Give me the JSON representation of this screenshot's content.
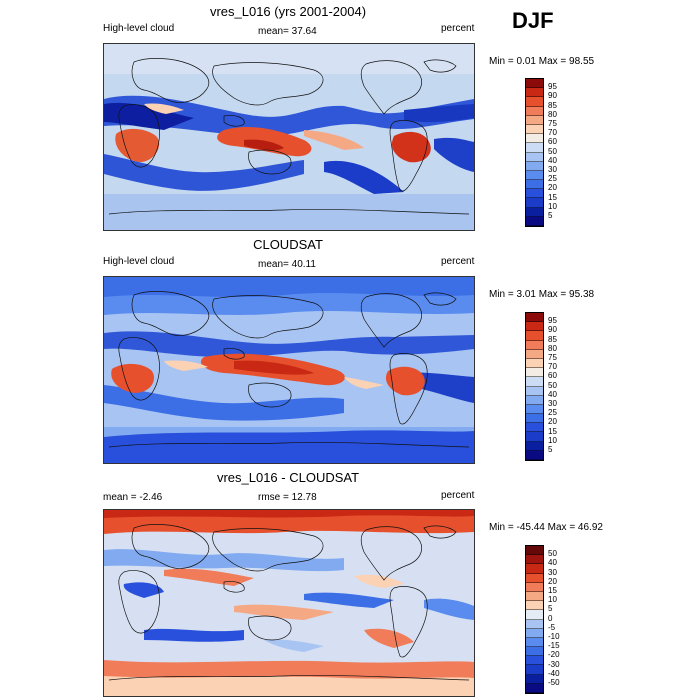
{
  "season": "DJF",
  "panels": [
    {
      "title": "vres_L016 (yrs 2001-2004)",
      "left_label": "High-level cloud",
      "center_label": "mean=  37.64",
      "right_label": "percent",
      "minmax": "Min =   0.01 Max =  98.55",
      "colorbar_ticks": [
        "95",
        "90",
        "85",
        "80",
        "75",
        "70",
        "60",
        "50",
        "40",
        "30",
        "25",
        "20",
        "15",
        "10",
        "5"
      ]
    },
    {
      "title": "CLOUDSAT",
      "left_label": "High-level cloud",
      "center_label": "mean=  40.11",
      "right_label": "percent",
      "minmax": "Min =   3.01 Max =  95.38",
      "colorbar_ticks": [
        "95",
        "90",
        "85",
        "80",
        "75",
        "70",
        "60",
        "50",
        "40",
        "30",
        "25",
        "20",
        "15",
        "10",
        "5"
      ]
    },
    {
      "title": "vres_L016 - CLOUDSAT",
      "left_label": "mean =  -2.46",
      "center_label": "rmse =  12.78",
      "right_label": "percent",
      "minmax": "Min = -45.44 Max =  46.92",
      "colorbar_ticks": [
        "50",
        "40",
        "30",
        "20",
        "15",
        "10",
        "5",
        "0",
        "-5",
        "-10",
        "-15",
        "-20",
        "-30",
        "-40",
        "-50"
      ]
    }
  ],
  "colors": {
    "abs_scale": [
      "#0a0a82",
      "#0a1ea0",
      "#1a3cc8",
      "#2850dc",
      "#3c6ee6",
      "#5a8cf0",
      "#82aaf0",
      "#a8c4f2",
      "#cddcf5",
      "#f2ece4",
      "#fcd2b4",
      "#f5a884",
      "#f07c5a",
      "#e6502d",
      "#c82814",
      "#8c0a0a"
    ],
    "diff_scale": [
      "#0a0a82",
      "#0a1ea0",
      "#1a3cc8",
      "#2850dc",
      "#3c6ee6",
      "#5a8cf0",
      "#82aaf0",
      "#a8c4f2",
      "#e6ecf5",
      "#fcd2b4",
      "#f5a884",
      "#f07c5a",
      "#e6502d",
      "#c82814",
      "#a01410",
      "#640808"
    ]
  },
  "chart_data": [
    {
      "type": "heatmap",
      "title": "vres_L016 (yrs 2001-2004)",
      "subtitle": "High-level cloud",
      "units": "percent",
      "mean": 37.64,
      "min": 0.01,
      "max": 98.55,
      "levels": [
        5,
        10,
        15,
        20,
        25,
        30,
        40,
        50,
        60,
        70,
        75,
        80,
        85,
        90,
        95
      ]
    },
    {
      "type": "heatmap",
      "title": "CLOUDSAT",
      "subtitle": "High-level cloud",
      "units": "percent",
      "mean": 40.11,
      "min": 3.01,
      "max": 95.38,
      "levels": [
        5,
        10,
        15,
        20,
        25,
        30,
        40,
        50,
        60,
        70,
        75,
        80,
        85,
        90,
        95
      ]
    },
    {
      "type": "heatmap",
      "title": "vres_L016 - CLOUDSAT",
      "units": "percent",
      "mean": -2.46,
      "rmse": 12.78,
      "min": -45.44,
      "max": 46.92,
      "levels": [
        -50,
        -40,
        -30,
        -20,
        -15,
        -10,
        -5,
        0,
        5,
        10,
        15,
        20,
        30,
        40,
        50
      ]
    }
  ]
}
